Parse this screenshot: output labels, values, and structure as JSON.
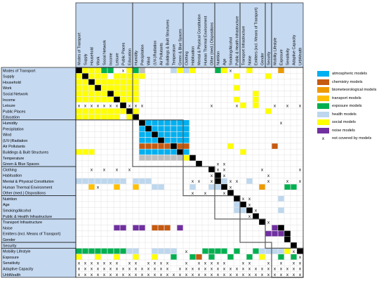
{
  "labels": [
    "Modes of Transport",
    "Supply",
    "Household",
    "Work",
    "Social Network",
    "Income",
    "Leisure",
    "Public Places",
    "Education",
    "Humidity",
    "Precipitation",
    "Wind",
    "(UV-)Radiation",
    "Air Pollutants",
    "Buildings & Built Structures",
    "Temperature",
    "Green & Blue Spaces",
    "Clothing",
    "Habituation",
    "Mental & Physical Constitution",
    "Human Thermal Environment",
    "Other (med.) Dispositions",
    "Nutrition",
    "Age",
    "Smoking/Alcohol",
    "Public & Health Infrastructure",
    "Transport Infrastructure",
    "Noise",
    "Emitters (incl. Means of Transport)",
    "Gender",
    "Security",
    "Mobility Lifestyle",
    "Exposure",
    "Sensitivity",
    "Adaptive Capacity",
    "UrbWealth"
  ],
  "groups": [
    {
      "start": 0,
      "end": 8
    },
    {
      "start": 9,
      "end": 16
    },
    {
      "start": 17,
      "end": 21
    },
    {
      "start": 22,
      "end": 25
    },
    {
      "start": 26,
      "end": 29
    },
    {
      "start": 30,
      "end": 30
    },
    {
      "start": 31,
      "end": 35
    }
  ],
  "colors": {
    "header_bg": "#c5d9f1",
    "diagonal": "#000000",
    "grid": "#d9d9d9",
    "block_border": "#595959",
    "b": "#00b0f0",
    "c": "#c55a11",
    "i": "#ed9a00",
    "t": "#ffc000",
    "e": "#00b050",
    "h": "#bdd7ee",
    "s": "#ffff00",
    "n": "#7030a0",
    "g": "#bfbfbf"
  },
  "legend": [
    {
      "key": "b",
      "label": "atmospheric models",
      "icon": "swatch"
    },
    {
      "key": "c",
      "label": "chemistry models",
      "icon": "swatch"
    },
    {
      "key": "i",
      "label": "biometeorological models",
      "icon": "swatch"
    },
    {
      "key": "t",
      "label": "transport models",
      "icon": "swatch"
    },
    {
      "key": "e",
      "label": "exposure models",
      "icon": "swatch"
    },
    {
      "key": "h",
      "label": "health models",
      "icon": "swatch"
    },
    {
      "key": "s",
      "label": "social models",
      "icon": "swatch"
    },
    {
      "key": "n",
      "label": "noise models",
      "icon": "swatch"
    },
    {
      "key": "x",
      "label": "not covered by models",
      "icon": "x-mark",
      "symbol": "x"
    }
  ],
  "cells": [
    "-ssseedxseg    hshs   esx  s    i   ",
    "s-sss sssss              s    s     ",
    "ss-sssssss                          ",
    "sss-ssssss               s          ",
    "sssss-ssss                  s       ",
    "ssssss-sss               s  s       ",
    "xxxxxxx-xxx          x   xs s  x x x",
    "ssssssss-s                    s     ",
    "sssssss s-                          ",
    "          -bbbbbbb              x   ",
    "          b-bbbbbb                  ",
    "          bb-bbbbb                  ",
    "          bbb-bbbb                  ",
    "          ccccc-cc      s      c    ",
    "sss       bbbbbb-b        s         ",
    "          gggggggs-                 ",
    "                   -  xx            ",
    "  x x x x            -xx     x     x",
    "                     x-x      x     ",
    "hhhhhhhh hhh      xx x-hxx h  x  x x",
    "  tx  t  t  hh    h  hh-x    i   ee ",
    "                  x x  x-           ",
    "                         -xx    h   ",
    "                         h-x        ",
    "                         hh-x   h   ",
    "                           x-       ",
    "                             -x     ",
    "      nn nn ccc n              n-   ",
    "                              nnn-  ",
    "                                 -  ",
    "                                  - ",
    "eeeeeeeehh  hhhh x  eeee e  ehhhhsx-",
    "s  s  s  s  s  e  ec e  e  e s  e ex",
    "xxxxxxx xx xxxx  x xxxxx  xx  x x xx",
    "xxxxxxxxxxxxxxx xxxxxxxxxxxxxxxxxxxx",
    "xxxxxxxxxxxxxxxxxxxxxxxxxxxxxxxxxxxx"
  ]
}
